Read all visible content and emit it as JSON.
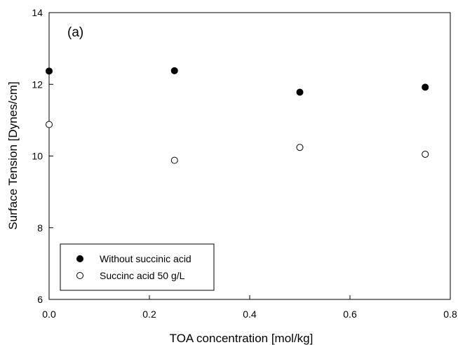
{
  "chart_data": {
    "type": "scatter",
    "panel_label": "(a)",
    "xlabel": "TOA concentration [mol/kg]",
    "ylabel": "Surface Tension [Dynes/cm]",
    "xlim": [
      0,
      0.8
    ],
    "ylim": [
      6,
      14
    ],
    "x_ticks": [
      0.0,
      0.2,
      0.4,
      0.6,
      0.8
    ],
    "x_tick_labels": [
      "0.0",
      "0.2",
      "0.4",
      "0.6",
      "0.8"
    ],
    "y_ticks": [
      6,
      8,
      10,
      12,
      14
    ],
    "y_tick_labels": [
      "6",
      "8",
      "10",
      "12",
      "14"
    ],
    "grid": false,
    "legend_position": "bottom-left",
    "series": [
      {
        "name": "Without succinic acid",
        "marker": "filled-circle",
        "color": "#000000",
        "x": [
          0.0,
          0.25,
          0.5,
          0.75
        ],
        "y": [
          12.37,
          12.38,
          11.78,
          11.92
        ]
      },
      {
        "name": "Succinc acid 50 g/L",
        "marker": "open-circle",
        "color": "#000000",
        "x": [
          0.0,
          0.25,
          0.5,
          0.75
        ],
        "y": [
          10.88,
          9.88,
          10.24,
          10.05
        ]
      }
    ]
  }
}
